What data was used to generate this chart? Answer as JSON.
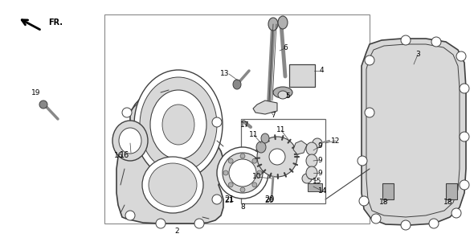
{
  "bg": "white",
  "lc": "#404040",
  "gray_light": "#d8d8d8",
  "gray_mid": "#b0b0b0",
  "gray_dark": "#888888",
  "figsize": [
    5.9,
    3.01
  ],
  "dpi": 100
}
